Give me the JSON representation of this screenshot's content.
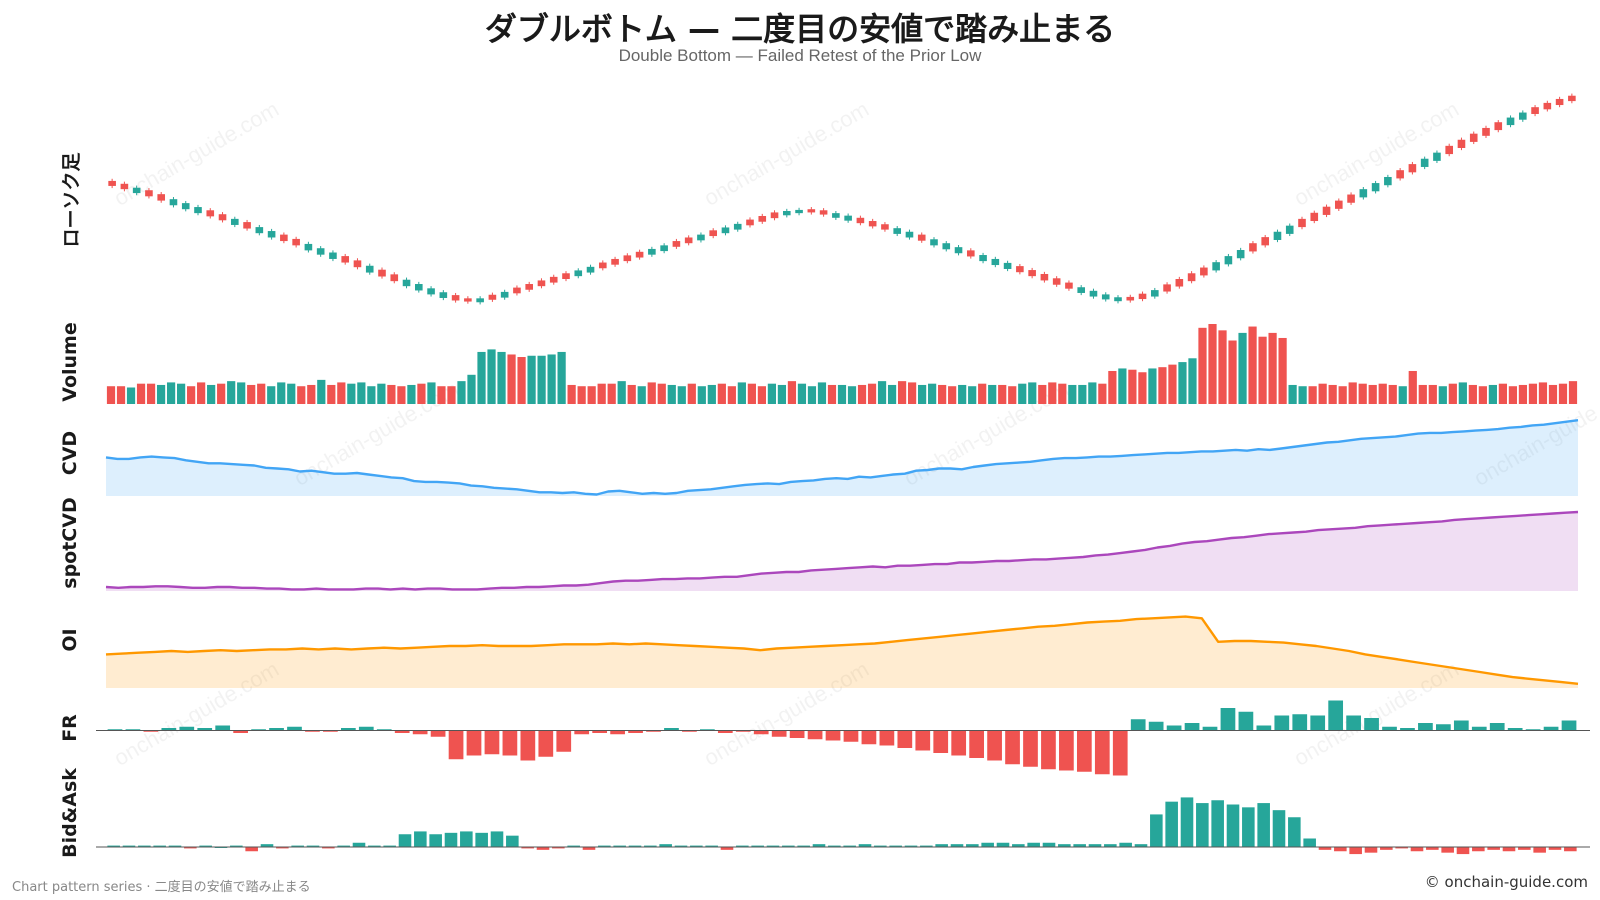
{
  "title": "ダブルボトム — 二度目の安値で踏み止まる",
  "subtitle": "Double Bottom — Failed Retest of the Prior Low",
  "footer_left": "Chart pattern series · 二度目の安値で踏み止まる",
  "footer_right": "© onchain-guide.com",
  "watermark_text": "onchain-guide.com",
  "colors": {
    "up": "#26a69a",
    "down": "#ef5350",
    "cvd": "#42a5f5",
    "spotcvd": "#ab47bc",
    "oi": "#ff9800"
  },
  "chart_data": [
    {
      "type": "candlestick",
      "label": "ローソク足",
      "close": [
        78,
        77.1,
        76.2,
        75.1,
        73.9,
        72.8,
        71.7,
        70.6,
        69.5,
        68.4,
        67.3,
        66.1,
        65,
        63.8,
        62.6,
        61.4,
        60.2,
        59,
        57.8,
        56.6,
        55.3,
        54,
        52.7,
        51.4,
        50.2,
        49,
        47.9,
        46.9,
        46,
        45.7,
        46.2,
        47,
        48,
        49,
        50,
        51,
        52,
        53,
        54,
        55,
        56,
        57,
        58,
        59,
        60,
        61,
        62,
        63,
        64,
        65,
        66,
        67,
        68,
        69,
        70,
        70.6,
        70.9,
        70.6,
        70,
        69.3,
        68.5,
        67.6,
        66.7,
        65.8,
        64.8,
        63.8,
        62.7,
        61.6,
        60.5,
        59.4,
        58.3,
        57.2,
        56.1,
        55,
        53.9,
        52.8,
        51.6,
        50.4,
        49.3,
        48.3,
        47.3,
        46.5,
        46,
        46.4,
        47.3,
        48.5,
        49.9,
        51.4,
        53,
        54.6,
        56.3,
        58,
        59.7,
        61.4,
        63.1,
        64.8,
        66.5,
        68.2,
        69.9,
        71.6,
        73.3,
        75,
        76.7,
        78.4,
        80.1,
        81.8,
        83.5,
        85.2,
        86.9,
        88.6,
        90.3,
        92,
        93.6,
        95.2,
        96.7,
        98.1,
        99.4,
        100.6,
        101.7,
        102.6
      ],
      "up": [
        false,
        false,
        true,
        false,
        false,
        true,
        true,
        true,
        false,
        false,
        true,
        false,
        true,
        true,
        false,
        false,
        true,
        true,
        true,
        false,
        false,
        true,
        false,
        false,
        true,
        true,
        true,
        true,
        false,
        false,
        true,
        false,
        true,
        false,
        false,
        false,
        false,
        false,
        true,
        true,
        false,
        false,
        false,
        false,
        true,
        true,
        false,
        false,
        true,
        false,
        true,
        true,
        false,
        false,
        false,
        true,
        true,
        false,
        false,
        true,
        true,
        false,
        false,
        false,
        true,
        true,
        false,
        true,
        true,
        true,
        false,
        true,
        true,
        true,
        false,
        false,
        false,
        false,
        false,
        true,
        true,
        true,
        true,
        false,
        false,
        true,
        false,
        false,
        false,
        false,
        true,
        true,
        true,
        false,
        false,
        true,
        true,
        false,
        false,
        false,
        false,
        false,
        true,
        true,
        true,
        false,
        false,
        true,
        true,
        false,
        false,
        false,
        false,
        false,
        true,
        true,
        false,
        false,
        false,
        false,
        false,
        false,
        false,
        false,
        false,
        false,
        false,
        false,
        false,
        false,
        false,
        false,
        false,
        false,
        false,
        false,
        false,
        false,
        false,
        false
      ]
    },
    {
      "type": "bar",
      "label": "Volume",
      "values": [
        1.4,
        1.4,
        1.3,
        1.6,
        1.6,
        1.5,
        1.7,
        1.6,
        1.4,
        1.7,
        1.5,
        1.6,
        1.8,
        1.7,
        1.5,
        1.6,
        1.4,
        1.7,
        1.6,
        1.4,
        1.5,
        1.9,
        1.5,
        1.7,
        1.6,
        1.7,
        1.4,
        1.6,
        1.5,
        1.4,
        1.5,
        1.6,
        1.7,
        1.4,
        1.4,
        1.8,
        2.3,
        4.1,
        4.3,
        4.1,
        3.9,
        3.7,
        3.8,
        3.8,
        3.9,
        4.1,
        1.5,
        1.4,
        1.4,
        1.6,
        1.6,
        1.8,
        1.5,
        1.4,
        1.7,
        1.6,
        1.5,
        1.4,
        1.6,
        1.4,
        1.5,
        1.6,
        1.4,
        1.7,
        1.6,
        1.4,
        1.6,
        1.5,
        1.8,
        1.6,
        1.4,
        1.7,
        1.5,
        1.5,
        1.4,
        1.5,
        1.6,
        1.8,
        1.5,
        1.8,
        1.7,
        1.5,
        1.6,
        1.5,
        1.4,
        1.5,
        1.4,
        1.6,
        1.5,
        1.5,
        1.4,
        1.6,
        1.7,
        1.5,
        1.7,
        1.6,
        1.5,
        1.5,
        1.7,
        1.6,
        2.6,
        2.8,
        2.7,
        2.5,
        2.8,
        2.9,
        3.1,
        3.3,
        3.6,
        6.0,
        6.3,
        5.8,
        5.0,
        5.6,
        6.1,
        5.3,
        5.6,
        5.2,
        1.5,
        1.4,
        1.4,
        1.6,
        1.5,
        1.4,
        1.7,
        1.6,
        1.5,
        1.6,
        1.5,
        1.4,
        2.6,
        1.5,
        1.5,
        1.4,
        1.6,
        1.7,
        1.5,
        1.4,
        1.5,
        1.6,
        1.4,
        1.5,
        1.6,
        1.7,
        1.5,
        1.6,
        1.8
      ],
      "colors_up": [
        false,
        false,
        true,
        false,
        false,
        true,
        true,
        true,
        false,
        false,
        true,
        false,
        true,
        true,
        false,
        false,
        true,
        true,
        true,
        false,
        false,
        true,
        false,
        false,
        true,
        true,
        true,
        true,
        false,
        false,
        true,
        false,
        true,
        false,
        false,
        true,
        true,
        true,
        true,
        true,
        false,
        false,
        true,
        true,
        true,
        true,
        false,
        false,
        false,
        false,
        false,
        true,
        false,
        true,
        false,
        false,
        true,
        true,
        false,
        true,
        true,
        false,
        false,
        true,
        false,
        false,
        true,
        true,
        false,
        true,
        true,
        true,
        false,
        true,
        true,
        false,
        false,
        true,
        true,
        false,
        false,
        true,
        true,
        false,
        false,
        true,
        true,
        false,
        true,
        false,
        false,
        true,
        true,
        false,
        false,
        false,
        true,
        true,
        true,
        false,
        false,
        true,
        false,
        false,
        true,
        false,
        false,
        true,
        true,
        false,
        false,
        false,
        false,
        true,
        false,
        false,
        false,
        false,
        true,
        true,
        false,
        false,
        false,
        false,
        false,
        false,
        false,
        false,
        false,
        true,
        false,
        false,
        false,
        true,
        false,
        true,
        false,
        false,
        true,
        false,
        false,
        false,
        false,
        false,
        false,
        false,
        false,
        false,
        false,
        false
      ]
    },
    {
      "type": "area",
      "label": "CVD",
      "values": [
        0.52,
        0.5,
        0.5,
        0.52,
        0.53,
        0.52,
        0.51,
        0.48,
        0.46,
        0.44,
        0.44,
        0.43,
        0.42,
        0.41,
        0.38,
        0.37,
        0.36,
        0.33,
        0.34,
        0.32,
        0.3,
        0.3,
        0.31,
        0.29,
        0.27,
        0.25,
        0.24,
        0.2,
        0.19,
        0.19,
        0.18,
        0.17,
        0.14,
        0.13,
        0.11,
        0.1,
        0.09,
        0.07,
        0.05,
        0.05,
        0.04,
        0.05,
        0.03,
        0.02,
        0.06,
        0.07,
        0.05,
        0.03,
        0.04,
        0.03,
        0.04,
        0.07,
        0.08,
        0.09,
        0.11,
        0.13,
        0.15,
        0.16,
        0.17,
        0.16,
        0.19,
        0.2,
        0.21,
        0.23,
        0.24,
        0.23,
        0.26,
        0.25,
        0.27,
        0.29,
        0.3,
        0.34,
        0.35,
        0.37,
        0.37,
        0.36,
        0.39,
        0.41,
        0.43,
        0.44,
        0.45,
        0.46,
        0.48,
        0.5,
        0.51,
        0.51,
        0.52,
        0.53,
        0.53,
        0.54,
        0.55,
        0.56,
        0.57,
        0.58,
        0.58,
        0.59,
        0.6,
        0.6,
        0.61,
        0.62,
        0.61,
        0.63,
        0.62,
        0.64,
        0.66,
        0.68,
        0.7,
        0.72,
        0.73,
        0.75,
        0.77,
        0.78,
        0.79,
        0.8,
        0.82,
        0.84,
        0.85,
        0.85,
        0.86,
        0.87,
        0.88,
        0.89,
        0.9,
        0.92,
        0.93,
        0.95,
        0.96,
        0.98,
        1.0,
        1.02
      ],
      "ylim": [
        0,
        1.05
      ]
    },
    {
      "type": "area",
      "label": "spotCVD",
      "values": [
        0.05,
        0.04,
        0.05,
        0.05,
        0.06,
        0.06,
        0.05,
        0.04,
        0.04,
        0.05,
        0.05,
        0.04,
        0.04,
        0.03,
        0.03,
        0.02,
        0.02,
        0.03,
        0.02,
        0.02,
        0.02,
        0.03,
        0.03,
        0.02,
        0.03,
        0.02,
        0.03,
        0.03,
        0.02,
        0.02,
        0.02,
        0.03,
        0.04,
        0.04,
        0.05,
        0.05,
        0.06,
        0.07,
        0.07,
        0.08,
        0.1,
        0.12,
        0.13,
        0.13,
        0.14,
        0.15,
        0.15,
        0.16,
        0.16,
        0.17,
        0.18,
        0.18,
        0.2,
        0.22,
        0.23,
        0.24,
        0.24,
        0.26,
        0.27,
        0.28,
        0.29,
        0.3,
        0.31,
        0.3,
        0.32,
        0.32,
        0.33,
        0.34,
        0.34,
        0.36,
        0.36,
        0.37,
        0.38,
        0.38,
        0.39,
        0.4,
        0.4,
        0.41,
        0.42,
        0.43,
        0.45,
        0.46,
        0.48,
        0.5,
        0.52,
        0.55,
        0.57,
        0.6,
        0.62,
        0.63,
        0.65,
        0.67,
        0.68,
        0.7,
        0.72,
        0.73,
        0.74,
        0.75,
        0.77,
        0.78,
        0.79,
        0.8,
        0.82,
        0.83,
        0.84,
        0.85,
        0.86,
        0.87,
        0.88,
        0.9,
        0.91,
        0.92,
        0.93,
        0.94,
        0.95,
        0.96,
        0.97,
        0.98,
        0.99,
        1.0
      ],
      "ylim": [
        0,
        1.05
      ]
    },
    {
      "type": "area",
      "label": "OI",
      "values": [
        0.4,
        0.41,
        0.42,
        0.43,
        0.44,
        0.43,
        0.44,
        0.45,
        0.44,
        0.45,
        0.46,
        0.46,
        0.47,
        0.46,
        0.47,
        0.46,
        0.47,
        0.48,
        0.47,
        0.48,
        0.49,
        0.5,
        0.5,
        0.51,
        0.5,
        0.5,
        0.5,
        0.51,
        0.52,
        0.52,
        0.52,
        0.53,
        0.52,
        0.53,
        0.52,
        0.51,
        0.5,
        0.49,
        0.48,
        0.47,
        0.45,
        0.47,
        0.48,
        0.49,
        0.5,
        0.51,
        0.52,
        0.53,
        0.55,
        0.57,
        0.59,
        0.61,
        0.63,
        0.65,
        0.67,
        0.69,
        0.71,
        0.73,
        0.74,
        0.76,
        0.78,
        0.79,
        0.8,
        0.82,
        0.83,
        0.84,
        0.85,
        0.83,
        0.55,
        0.56,
        0.56,
        0.55,
        0.54,
        0.52,
        0.5,
        0.47,
        0.44,
        0.4,
        0.37,
        0.34,
        0.31,
        0.28,
        0.25,
        0.22,
        0.19,
        0.16,
        0.13,
        0.11,
        0.09,
        0.07,
        0.05
      ],
      "ylim": [
        0,
        1.0
      ]
    },
    {
      "type": "bar",
      "label": "FR",
      "values": [
        0.1,
        0.1,
        -0.1,
        0.2,
        0.3,
        0.2,
        0.4,
        -0.2,
        0.1,
        0.2,
        0.3,
        -0.1,
        -0.1,
        0.2,
        0.3,
        0.1,
        -0.2,
        -0.3,
        -0.5,
        -2.3,
        -2.0,
        -1.9,
        -2.0,
        -2.4,
        -2.1,
        -1.7,
        -0.3,
        -0.2,
        -0.3,
        -0.2,
        -0.1,
        0.2,
        -0.1,
        0.1,
        -0.2,
        -0.1,
        -0.3,
        -0.5,
        -0.6,
        -0.7,
        -0.8,
        -0.9,
        -1.1,
        -1.2,
        -1.4,
        -1.6,
        -1.8,
        -2.0,
        -2.2,
        -2.4,
        -2.7,
        -2.9,
        -3.1,
        -3.2,
        -3.3,
        -3.5,
        -3.6,
        0.9,
        0.7,
        0.4,
        0.6,
        0.3,
        1.8,
        1.5,
        0.4,
        1.2,
        1.3,
        1.2,
        2.4,
        1.2,
        1.0,
        0.3,
        0.2,
        0.6,
        0.5,
        0.8,
        0.3,
        0.6,
        0.2,
        0.1,
        0.3,
        0.8
      ],
      "ylim": [
        -3.8,
        2.6
      ]
    },
    {
      "type": "bar",
      "label": "Bid&Ask",
      "values": [
        0.1,
        0.1,
        0.1,
        0.1,
        0.1,
        -0.1,
        0.1,
        0.0,
        0.1,
        -0.3,
        0.2,
        -0.1,
        0.1,
        0.1,
        -0.1,
        0.1,
        0.3,
        0.1,
        0.1,
        0.9,
        1.1,
        0.9,
        1.0,
        1.1,
        1.0,
        1.1,
        0.8,
        -0.1,
        -0.2,
        -0.1,
        0.1,
        -0.2,
        0.1,
        0.1,
        0.1,
        0.1,
        0.2,
        0.1,
        0.1,
        0.1,
        -0.2,
        0.1,
        0.1,
        0.1,
        0.1,
        0.1,
        0.2,
        0.1,
        0.1,
        0.2,
        0.1,
        0.1,
        0.1,
        0.1,
        0.2,
        0.2,
        0.2,
        0.3,
        0.3,
        0.2,
        0.3,
        0.3,
        0.2,
        0.2,
        0.2,
        0.2,
        0.3,
        0.2,
        2.3,
        3.2,
        3.5,
        3.1,
        3.3,
        3.0,
        2.8,
        3.1,
        2.6,
        2.1,
        0.6,
        -0.2,
        -0.3,
        -0.5,
        -0.4,
        -0.2,
        -0.1,
        -0.3,
        -0.2,
        -0.4,
        -0.5,
        -0.3,
        -0.2,
        -0.3,
        -0.2,
        -0.4,
        -0.2,
        -0.3
      ],
      "ylim": [
        -1.2,
        3.6
      ]
    }
  ]
}
